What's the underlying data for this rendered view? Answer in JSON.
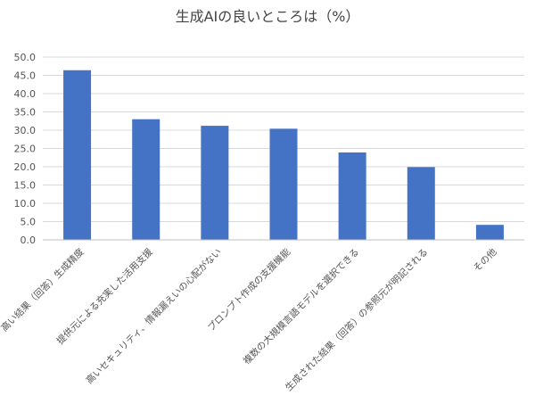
{
  "chart_data": {
    "type": "bar",
    "title": "生成AIの良いところは（%）",
    "xlabel": "",
    "ylabel": "",
    "categories": [
      "高い結果（回答）生成精度",
      "提供元による充実した活用支援",
      "高いセキュリティ、情報漏えいの心配がない",
      "プロンプト作成の支援機能",
      "複数の大規模言語モデルを選択できる",
      "生成された結果（回答）の参照元が明記される",
      "その他"
    ],
    "values": [
      46.4,
      33.0,
      31.2,
      30.4,
      23.9,
      19.9,
      4.1
    ],
    "ylim": [
      0,
      50
    ],
    "yticks": [
      "0.0",
      "5.0",
      "10.0",
      "15.0",
      "20.0",
      "25.0",
      "30.0",
      "35.0",
      "40.0",
      "45.0",
      "50.0"
    ],
    "bar_color": "#4472c4",
    "grid": true,
    "legend": "none"
  }
}
